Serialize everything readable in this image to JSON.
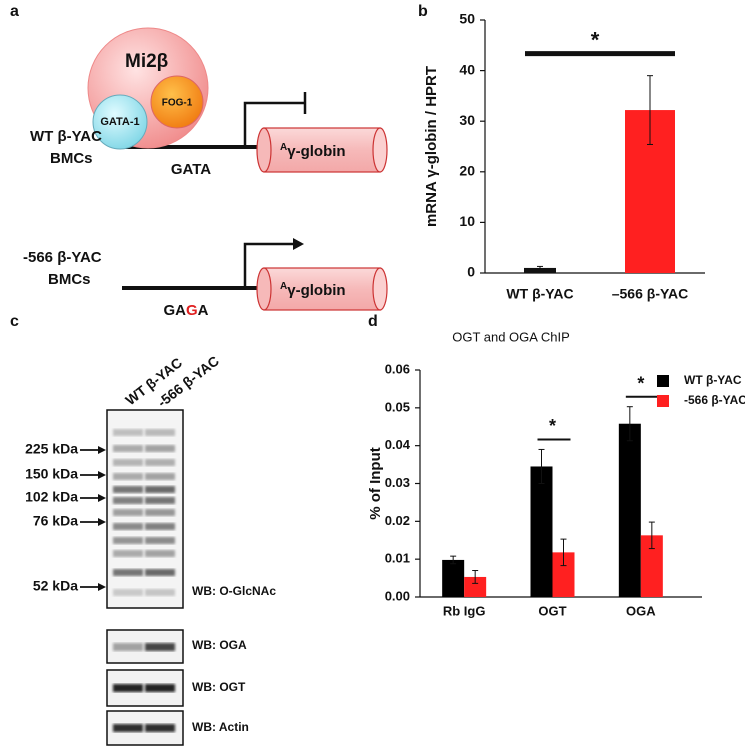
{
  "panel_labels": [
    "a",
    "b",
    "c",
    "d"
  ],
  "diagram": {
    "complex": {
      "main": "Mi2β",
      "partner1": "FOG-1",
      "partner2": "GATA-1"
    },
    "wild_type": {
      "label_line1": "WT β-YAC",
      "label_line2": "BMCs",
      "site": "GATA",
      "gene": {
        "superscript": "A",
        "text": "γ-globin"
      }
    },
    "mutant": {
      "label_line1": "-566 β-YAC",
      "label_line2": "BMCs",
      "site": {
        "prefix": "GA",
        "mutation": "G",
        "suffix": "A"
      },
      "gene": {
        "superscript": "A",
        "text": "γ-globin"
      }
    }
  },
  "blot": {
    "lanes": [
      "WT β-YAC",
      "-566 β-YAC"
    ],
    "markers": [
      "225 kDa",
      "150 kDa",
      "102 kDa",
      "76 kDa",
      "52 kDa"
    ],
    "panels": [
      "WB: O-GlcNAc",
      "WB: OGA",
      "WB: OGT",
      "WB: Actin"
    ]
  },
  "chart_data": [
    {
      "type": "bar",
      "ylabel": "mRNA γ-globin / HPRT",
      "categories": [
        "WT β-YAC",
        "–566 β-YAC"
      ],
      "values": [
        1,
        32.2
      ],
      "errors": [
        0.3,
        6.8
      ],
      "colors": [
        "#111111",
        "#ff2020"
      ],
      "ylim": [
        0,
        50
      ],
      "yticks": [
        0,
        10,
        20,
        30,
        40,
        50
      ],
      "annotations": [
        "*"
      ]
    },
    {
      "type": "grouped_bar",
      "title": "OGT and OGA ChIP",
      "ylabel": "% of Input",
      "categories": [
        "Rb IgG",
        "OGT",
        "OGA"
      ],
      "series": [
        {
          "name": "WT β-YAC",
          "color": "#000000",
          "values": [
            0.0098,
            0.0345,
            0.0458
          ],
          "errors": [
            0.001,
            0.0045,
            0.0045
          ]
        },
        {
          "name": "-566 β-YAC",
          "color": "#ff2020",
          "values": [
            0.0053,
            0.0118,
            0.0163
          ],
          "errors": [
            0.0017,
            0.0035,
            0.0035
          ]
        }
      ],
      "ylim": [
        0,
        0.06
      ],
      "yticks": [
        {
          "value": 0,
          "label": "0.00"
        },
        {
          "value": 0.01,
          "label": "0.01"
        },
        {
          "value": 0.02,
          "label": "0.02"
        },
        {
          "value": 0.03,
          "label": "0.03"
        },
        {
          "value": 0.04,
          "label": "0.04"
        },
        {
          "value": 0.05,
          "label": "0.05"
        },
        {
          "value": 0.06,
          "label": "0.06"
        }
      ],
      "legend": "top-right",
      "annotations": [
        "*",
        "*"
      ]
    }
  ]
}
